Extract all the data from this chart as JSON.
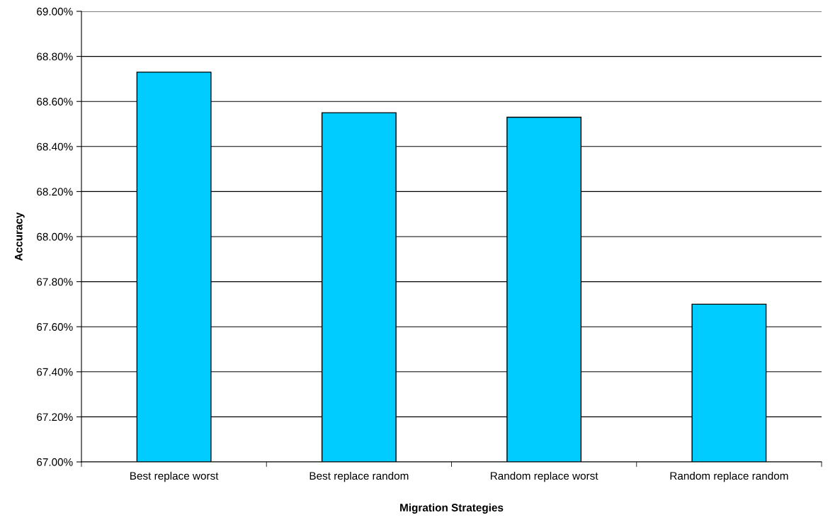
{
  "chart_data": {
    "type": "bar",
    "xlabel": "Migration Strategies",
    "ylabel": "Accuracy",
    "categories": [
      "Best replace worst",
      "Best replace random",
      "Random replace worst",
      "Random replace random"
    ],
    "values": [
      68.73,
      68.55,
      68.53,
      67.7
    ],
    "color": "#00ccff",
    "ylim": [
      67.0,
      69.0
    ],
    "yticks": [
      {
        "value": 67.0,
        "label": "67.00%"
      },
      {
        "value": 67.2,
        "label": "67.20%"
      },
      {
        "value": 67.4,
        "label": "67.40%"
      },
      {
        "value": 67.6,
        "label": "67.60%"
      },
      {
        "value": 67.8,
        "label": "67.80%"
      },
      {
        "value": 68.0,
        "label": "68.00%"
      },
      {
        "value": 68.2,
        "label": "68.20%"
      },
      {
        "value": 68.4,
        "label": "68.40%"
      },
      {
        "value": 68.6,
        "label": "68.60%"
      },
      {
        "value": 68.8,
        "label": "68.80%"
      },
      {
        "value": 69.0,
        "label": "69.00%"
      }
    ],
    "grid": "y",
    "legend": false
  }
}
